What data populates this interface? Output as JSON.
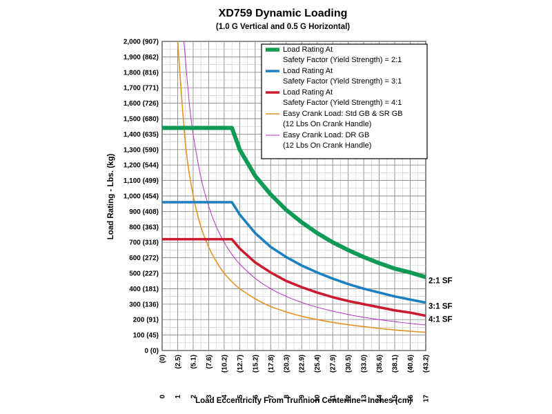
{
  "chart_data": {
    "type": "line",
    "title": "XD759 Dynamic Loading",
    "subtitle": "(1.0 G Vertical and 0.5 G Horizontal)",
    "xlabel": "Load Eccentricity From Trunnion Centerline - Inches (cm)",
    "ylabel": "Load Rating - Lbs. (kg)",
    "xlim": [
      0,
      17
    ],
    "ylim": [
      0,
      2000
    ],
    "grid": "on",
    "legend_position": "top-right",
    "x_ticks": [
      {
        "in": "0",
        "cm": "(0)"
      },
      {
        "in": "1",
        "cm": "(2.5)"
      },
      {
        "in": "2",
        "cm": "(5.1)"
      },
      {
        "in": "3",
        "cm": "(7.6)"
      },
      {
        "in": "4",
        "cm": "(10.2)"
      },
      {
        "in": "5",
        "cm": "(12.7)"
      },
      {
        "in": "6",
        "cm": "(15.2)"
      },
      {
        "in": "7",
        "cm": "(17.8)"
      },
      {
        "in": "8",
        "cm": "(20.3)"
      },
      {
        "in": "9",
        "cm": "(22.9)"
      },
      {
        "in": "10",
        "cm": "(25.4)"
      },
      {
        "in": "11",
        "cm": "(27.9)"
      },
      {
        "in": "12",
        "cm": "(30.5)"
      },
      {
        "in": "13",
        "cm": "(33.0)"
      },
      {
        "in": "14",
        "cm": "(35.6)"
      },
      {
        "in": "15",
        "cm": "(38.1)"
      },
      {
        "in": "16",
        "cm": "(40.6)"
      },
      {
        "in": "17",
        "cm": "(43.2)"
      }
    ],
    "y_ticks": [
      "0 (0)",
      "100 (45)",
      "200 (91)",
      "300 (136)",
      "400 (181)",
      "500 (227)",
      "600 (272)",
      "700 (318)",
      "800 (363)",
      "900 (408)",
      "1,000 (454)",
      "1,100 (499)",
      "1,200 (544)",
      "1,300 (590)",
      "1,400 (635)",
      "1,500 (680)",
      "1,600 (726)",
      "1,700 (771)",
      "1,800 (816)",
      "1,900 (862)",
      "2,000 (907)"
    ],
    "series": [
      {
        "name": "Load Rating At Safety Factor (Yield Strength) = 2:1",
        "legend_lines": [
          "Load Rating At",
          "Safety Factor (Yield Strength) = 2:1"
        ],
        "end_label": "2:1 SF",
        "color": "#119a55",
        "style": "thick",
        "x": [
          0,
          4.5,
          5,
          6,
          7,
          8,
          9,
          10,
          11,
          12,
          13,
          14,
          15,
          16,
          17
        ],
        "y": [
          1440,
          1440,
          1300,
          1130,
          1010,
          910,
          830,
          760,
          700,
          650,
          605,
          565,
          530,
          505,
          475
        ]
      },
      {
        "name": "Load Rating At Safety Factor (Yield Strength) = 3:1",
        "legend_lines": [
          "Load Rating At",
          "Safety Factor (Yield Strength) = 3:1"
        ],
        "end_label": "3:1 SF",
        "color": "#1b7fc0",
        "style": "medium",
        "x": [
          0,
          4.5,
          5,
          6,
          7,
          8,
          9,
          10,
          11,
          12,
          13,
          14,
          15,
          16,
          17
        ],
        "y": [
          960,
          960,
          880,
          760,
          670,
          605,
          550,
          505,
          465,
          430,
          400,
          375,
          350,
          330,
          310
        ]
      },
      {
        "name": "Load Rating At Safety Factor (Yield Strength) = 4:1",
        "legend_lines": [
          "Load Rating At",
          "Safety Factor (Yield Strength) = 4:1"
        ],
        "end_label": "4:1 SF",
        "color": "#cc1a2e",
        "style": "medium",
        "x": [
          0,
          4.5,
          5,
          6,
          7,
          8,
          9,
          10,
          11,
          12,
          13,
          14,
          15,
          16,
          17
        ],
        "y": [
          720,
          720,
          660,
          570,
          505,
          450,
          410,
          375,
          345,
          320,
          300,
          280,
          260,
          245,
          225
        ]
      },
      {
        "name": "Easy Crank Load: Std GB & SR GB (12 Lbs On Crank Handle)",
        "legend_lines": [
          "Easy Crank Load: Std GB & SR  GB",
          "(12 Lbs On Crank Handle)"
        ],
        "end_label": "",
        "color": "#e8921e",
        "style": "thin",
        "x": [
          1,
          1.5,
          2,
          2.5,
          3,
          3.5,
          4,
          4.5,
          5,
          6,
          7,
          8,
          9,
          10,
          11,
          12,
          13,
          14,
          15,
          16,
          17
        ],
        "y": [
          2000,
          1340,
          1005,
          800,
          670,
          575,
          500,
          445,
          400,
          335,
          285,
          250,
          222,
          200,
          182,
          167,
          155,
          143,
          133,
          125,
          118
        ]
      },
      {
        "name": "Easy Crank Load: DR GB (12 Lbs On Crank Handle)",
        "legend_lines": [
          "Easy Crank Load: DR GB",
          "(12 Lbs On Crank Handle)"
        ],
        "end_label": "",
        "color": "#b82ec8",
        "style": "hair",
        "x": [
          1.4,
          1.75,
          2,
          2.5,
          3,
          3.5,
          4,
          4.5,
          5,
          6,
          7,
          8,
          9,
          10,
          11,
          12,
          13,
          14,
          15,
          16,
          17
        ],
        "y": [
          2000,
          1600,
          1400,
          1120,
          935,
          800,
          700,
          622,
          560,
          467,
          400,
          350,
          311,
          280,
          255,
          233,
          215,
          200,
          187,
          175,
          165
        ]
      }
    ]
  }
}
